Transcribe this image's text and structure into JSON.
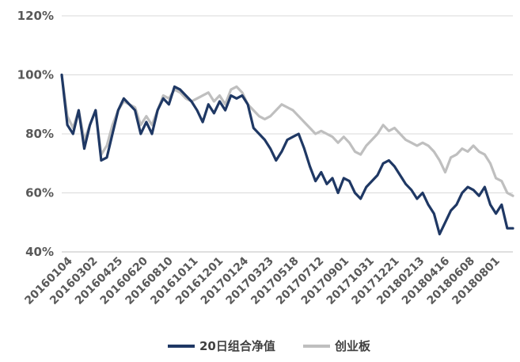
{
  "chart_data": {
    "type": "line",
    "title": "",
    "xlabel": "",
    "ylabel": "",
    "ylim": [
      40,
      120
    ],
    "y_ticks": [
      "40%",
      "60%",
      "80%",
      "100%",
      "120%"
    ],
    "y_tick_values": [
      40,
      60,
      80,
      100,
      120
    ],
    "grid": "horizontal",
    "legend_position": "bottom",
    "x_tick_labels": [
      "20160104",
      "20160302",
      "20160425",
      "20160620",
      "20160810",
      "20161011",
      "20161201",
      "20170124",
      "20170323",
      "20170518",
      "20170712",
      "20170901",
      "20171031",
      "20171221",
      "20180213",
      "20180416",
      "20180608",
      "20180801"
    ],
    "series": [
      {
        "name": "20日组合净值",
        "color": "#1f3864",
        "values": [
          100,
          83,
          80,
          88,
          75,
          83,
          88,
          71,
          72,
          80,
          88,
          92,
          90,
          88,
          80,
          84,
          80,
          88,
          92,
          90,
          96,
          95,
          93,
          91,
          88,
          84,
          90,
          87,
          91,
          88,
          93,
          92,
          93,
          90,
          82,
          80,
          78,
          75,
          71,
          74,
          78,
          79,
          80,
          75,
          69,
          64,
          67,
          63,
          65,
          60,
          65,
          64,
          60,
          58,
          62,
          64,
          66,
          70,
          71,
          69,
          66,
          63,
          61,
          58,
          60,
          56,
          53,
          46,
          50,
          54,
          56,
          60,
          62,
          61,
          59,
          62,
          56,
          53,
          56,
          48,
          48
        ]
      },
      {
        "name": "创业板",
        "color": "#bfbfbf",
        "values": [
          100,
          86,
          82,
          88,
          78,
          83,
          88,
          73,
          76,
          83,
          88,
          91,
          90,
          89,
          83,
          86,
          83,
          88,
          93,
          92,
          95,
          94,
          92,
          91,
          92,
          93,
          94,
          91,
          93,
          90,
          95,
          96,
          94,
          90,
          88,
          86,
          85,
          86,
          88,
          90,
          89,
          88,
          86,
          84,
          82,
          80,
          81,
          80,
          79,
          77,
          79,
          77,
          74,
          73,
          76,
          78,
          80,
          83,
          81,
          82,
          80,
          78,
          77,
          76,
          77,
          76,
          74,
          71,
          67,
          72,
          73,
          75,
          74,
          76,
          74,
          73,
          70,
          65,
          64,
          60,
          59
        ]
      }
    ]
  }
}
